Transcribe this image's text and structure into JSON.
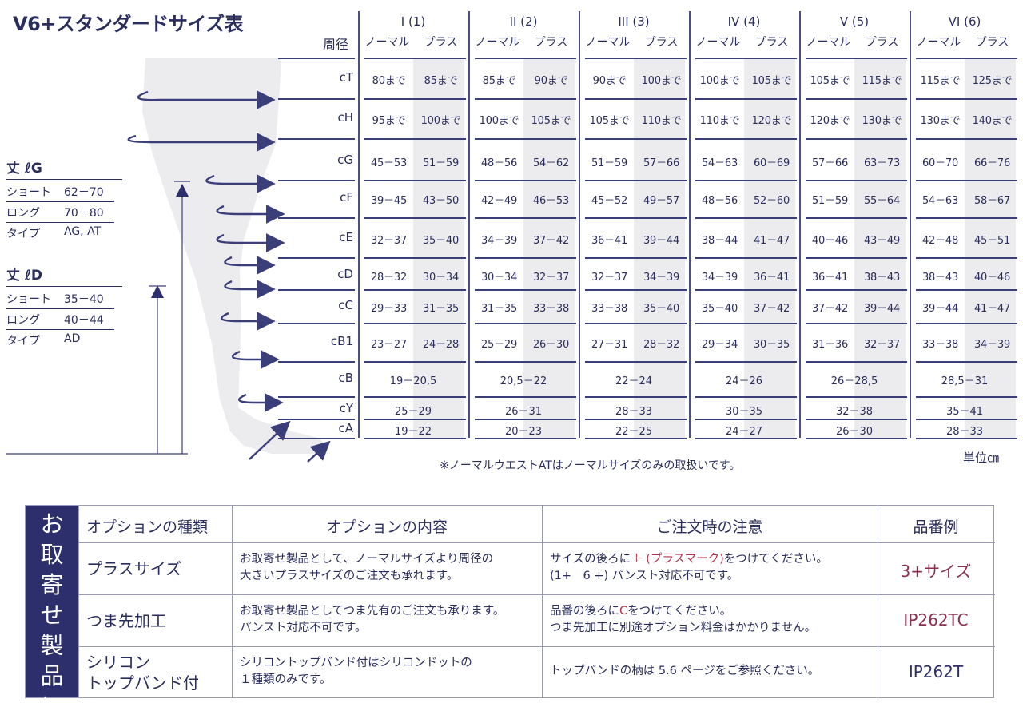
{
  "title": "V6+スタンダードサイズ表",
  "size_table": {
    "circ_label": "周径",
    "groups": [
      {
        "name": "I (1)",
        "normal": "ノーマル",
        "plus": "プラス"
      },
      {
        "name": "II (2)",
        "normal": "ノーマル",
        "plus": "プラス"
      },
      {
        "name": "III (3)",
        "normal": "ノーマル",
        "plus": "プラス"
      },
      {
        "name": "IV (4)",
        "normal": "ノーマル",
        "plus": "プラス"
      },
      {
        "name": "V (5)",
        "normal": "ノーマル",
        "plus": "プラス"
      },
      {
        "name": "VI (6)",
        "normal": "ノーマル",
        "plus": "プラス"
      }
    ],
    "rows": [
      {
        "label": "cT",
        "cells": [
          "80まで",
          "85まで",
          "85まで",
          "90まで",
          "90まで",
          "100まで",
          "100まで",
          "105まで",
          "105まで",
          "115まで",
          "115まで",
          "125まで"
        ]
      },
      {
        "label": "cH",
        "cells": [
          "95まで",
          "100まで",
          "100まで",
          "105まで",
          "105まで",
          "110まで",
          "110まで",
          "120まで",
          "120まで",
          "130まで",
          "130まで",
          "140まで"
        ]
      },
      {
        "label": "cG",
        "cells": [
          "45－53",
          "51－59",
          "48－56",
          "54－62",
          "51－59",
          "57－66",
          "54－63",
          "60－69",
          "57－66",
          "63－73",
          "60－70",
          "66－76"
        ]
      },
      {
        "label": "cF",
        "cells": [
          "39－45",
          "43－50",
          "42－49",
          "46－53",
          "45－52",
          "49－57",
          "48－56",
          "52－60",
          "51－59",
          "55－64",
          "54－63",
          "58－67"
        ]
      },
      {
        "label": "cE",
        "cells": [
          "32－37",
          "35－40",
          "34－39",
          "37－42",
          "36－41",
          "39－44",
          "38－44",
          "41－47",
          "40－46",
          "43－49",
          "42－48",
          "45－51"
        ]
      },
      {
        "label": "cD",
        "cells": [
          "28－32",
          "30－34",
          "30－34",
          "32－37",
          "32－37",
          "34－39",
          "34－39",
          "36－41",
          "36－41",
          "38－43",
          "38－43",
          "40－46"
        ]
      },
      {
        "label": "cC",
        "cells": [
          "29－33",
          "31－35",
          "31－35",
          "33－38",
          "33－38",
          "35－40",
          "35－40",
          "37－42",
          "37－42",
          "39－44",
          "39－44",
          "41－47"
        ]
      },
      {
        "label": "cB1",
        "cells": [
          "23－27",
          "24－28",
          "25－29",
          "26－30",
          "27－31",
          "28－32",
          "29－34",
          "30－35",
          "31－36",
          "32－37",
          "33－38",
          "34－39"
        ]
      },
      {
        "label": "cB",
        "merged": [
          "19－20,5",
          "20,5－22",
          "22－24",
          "24－26",
          "26－28,5",
          "28,5－31"
        ]
      },
      {
        "label": "cY",
        "merged": [
          "25－29",
          "26－31",
          "28－33",
          "30－35",
          "32－38",
          "35－41"
        ]
      },
      {
        "label": "cA",
        "merged": [
          "19－22",
          "20－23",
          "22－25",
          "24－27",
          "26－30",
          "28－33"
        ]
      }
    ],
    "note": "※ノーマルウエストATはノーマルサイズのみの取扱いです。",
    "unit": "単位㎝"
  },
  "length_g": {
    "title": "丈 ℓG",
    "rows": [
      {
        "k": "ショート",
        "v": "62－70"
      },
      {
        "k": "ロング",
        "v": "70－80"
      },
      {
        "k": "タイプ",
        "v": "AG, AT"
      }
    ]
  },
  "length_d": {
    "title": "丈 ℓD",
    "rows": [
      {
        "k": "ショート",
        "v": "35－40"
      },
      {
        "k": "ロング",
        "v": "40－44"
      },
      {
        "k": "タイプ",
        "v": "AD"
      }
    ]
  },
  "options": {
    "side_label": "お取寄せ製品に",
    "headers": [
      "オプションの種類",
      "オプションの内容",
      "ご注文時の注意",
      "品番例"
    ],
    "rows": [
      {
        "name": "プラスサイズ",
        "content_lines": [
          "お取寄せ製品として、ノーマルサイズより周径の",
          "大きいプラスサイズのご注文も承れます。"
        ],
        "notice_line1_pre": "サイズの後ろに",
        "notice_line1_mark": "＋ (プラスマーク)",
        "notice_line1_post": "をつけてください。",
        "notice_line2": "(1+　6 +) パンスト対応不可です。",
        "example": "3+サイズ",
        "example_color": "#8a2f4c"
      },
      {
        "name": "つま先加工",
        "content_lines": [
          "お取寄せ製品としてつま先有のご注文も承ります。",
          "パンスト対応不可です。"
        ],
        "notice_line1_pre": "品番の後ろに",
        "notice_line1_mark": "C",
        "notice_line1_post": "をつけてください。",
        "notice_line2": "つま先加工に別途オプション料金はかかりません。",
        "example": "IP262TC",
        "example_color": "#8a2f4c"
      },
      {
        "name_lines": [
          "シリコン",
          "トップバンド付"
        ],
        "content_lines": [
          "シリコントップバンド付はシリコンドットの",
          "１種類のみです。"
        ],
        "notice_single": "トップバンドの柄は 5.6 ページをご参照ください。",
        "example": "IP262T",
        "example_color": "#2c2f6b"
      }
    ]
  },
  "colors": {
    "navy": "#2c2f6b",
    "accent_red": "#b8334c",
    "grey": "#ececef"
  }
}
